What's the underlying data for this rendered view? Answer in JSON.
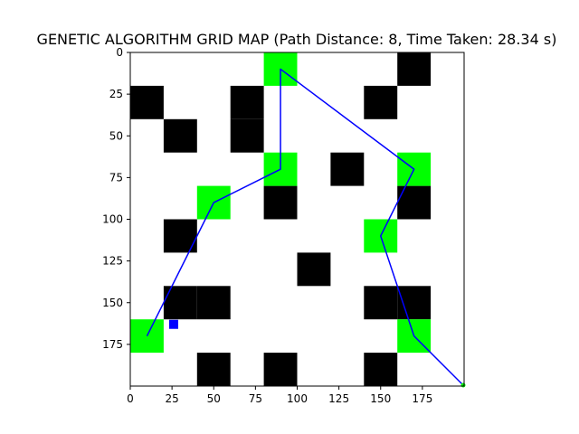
{
  "chart_data": {
    "type": "heatmap",
    "title": "GENETIC ALGORITHM GRID MAP (Path Distance: 8, Time Taken: 28.34 s)",
    "xlabel": "",
    "ylabel": "",
    "xlim": [
      0,
      200
    ],
    "ylim": [
      200,
      0
    ],
    "y_inverted": true,
    "cell_size": 20,
    "x_ticks": [
      0,
      25,
      50,
      75,
      100,
      125,
      150,
      175
    ],
    "y_ticks": [
      0,
      25,
      50,
      75,
      100,
      125,
      150,
      175
    ],
    "grid": false,
    "obstacles": [
      [
        160,
        0
      ],
      [
        0,
        20
      ],
      [
        60,
        20
      ],
      [
        140,
        20
      ],
      [
        20,
        40
      ],
      [
        60,
        40
      ],
      [
        120,
        60
      ],
      [
        80,
        80
      ],
      [
        160,
        80
      ],
      [
        20,
        100
      ],
      [
        100,
        120
      ],
      [
        20,
        140
      ],
      [
        40,
        140
      ],
      [
        140,
        140
      ],
      [
        160,
        140
      ],
      [
        40,
        180
      ],
      [
        80,
        180
      ],
      [
        140,
        180
      ]
    ],
    "waypoints": [
      [
        80,
        0
      ],
      [
        80,
        60
      ],
      [
        160,
        60
      ],
      [
        40,
        80
      ],
      [
        140,
        100
      ],
      [
        0,
        160
      ],
      [
        160,
        160
      ]
    ],
    "start_marker": [
      26,
      163
    ],
    "end_marker": [
      200,
      200
    ],
    "path": {
      "x": [
        200,
        170,
        150,
        170,
        90,
        90,
        50,
        10
      ],
      "y": [
        200,
        170,
        110,
        70,
        10,
        70,
        90,
        170
      ]
    },
    "colors": {
      "obstacle": "#000000",
      "waypoint": "#00ff00",
      "path": "#0000ff",
      "start": "#0000ff",
      "end": "#00ff00",
      "background": "#ffffff"
    }
  }
}
